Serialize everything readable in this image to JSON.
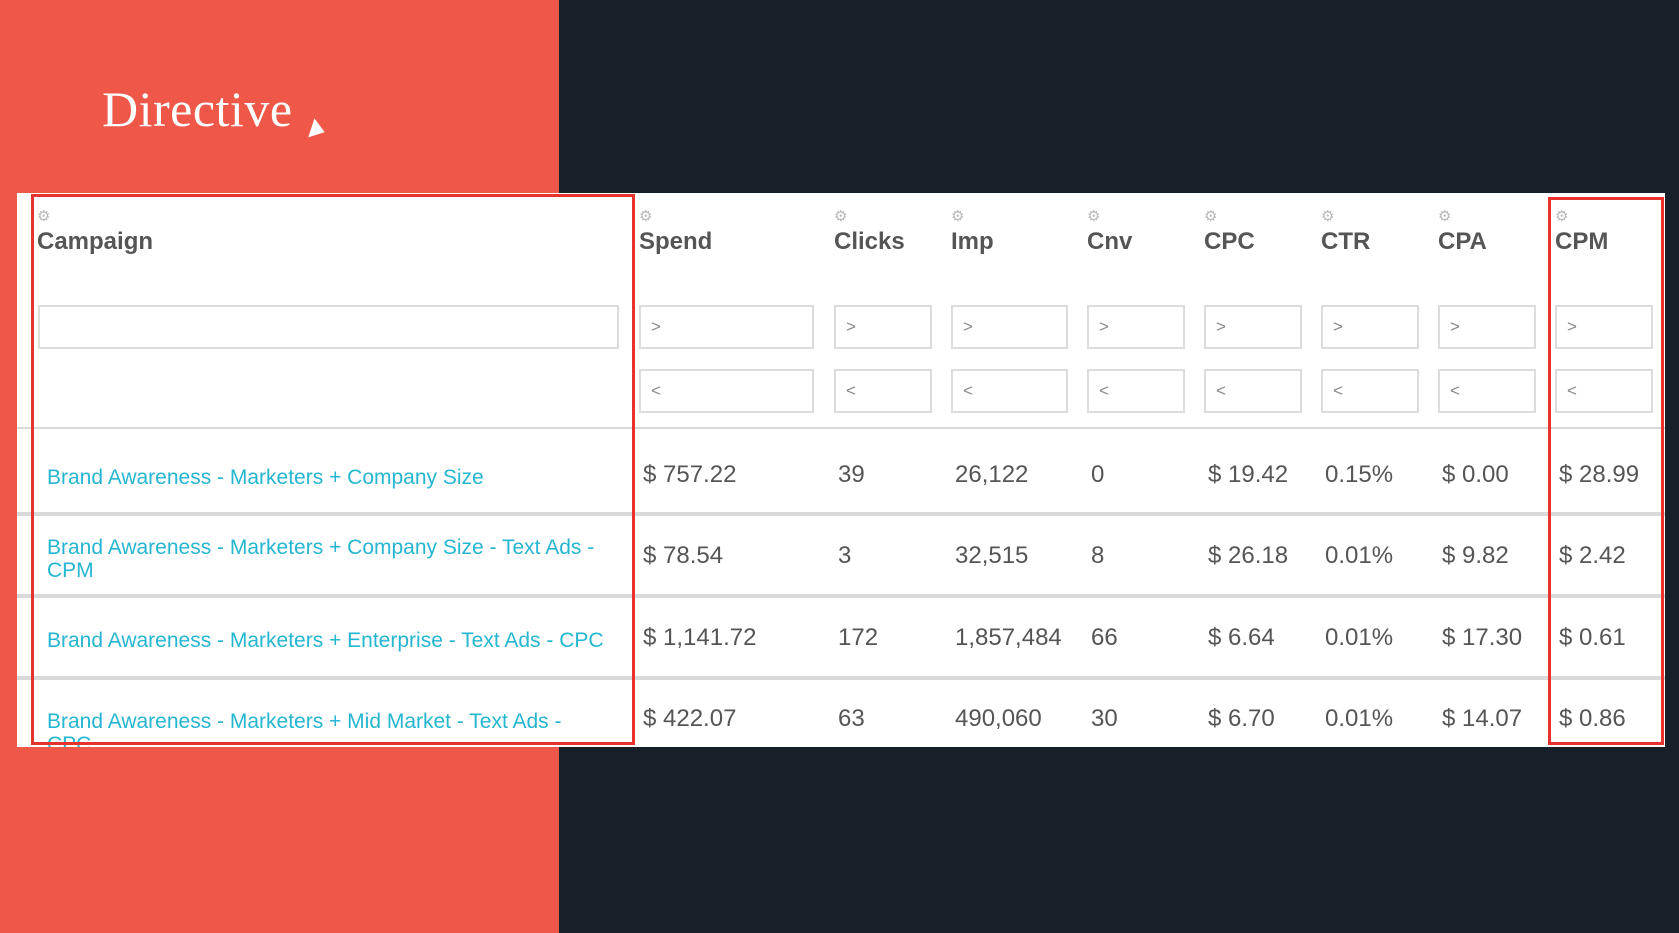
{
  "brand": {
    "name": "Directive"
  },
  "colors": {
    "accent_red": "#ef5848",
    "dark_bg": "#172029",
    "link": "#25b6d1",
    "highlight": "#e8322e"
  },
  "table": {
    "columns": [
      {
        "key": "campaign",
        "label": "Campaign"
      },
      {
        "key": "spend",
        "label": "Spend"
      },
      {
        "key": "clicks",
        "label": "Clicks"
      },
      {
        "key": "imp",
        "label": "Imp"
      },
      {
        "key": "cnv",
        "label": "Cnv"
      },
      {
        "key": "cpc",
        "label": "CPC"
      },
      {
        "key": "ctr",
        "label": "CTR"
      },
      {
        "key": "cpa",
        "label": "CPA"
      },
      {
        "key": "cpm",
        "label": "CPM"
      }
    ],
    "filter_gt": ">",
    "filter_lt": "<",
    "rows": [
      {
        "campaign": "Brand Awareness - Marketers + Company Size",
        "spend": "$ 757.22",
        "clicks": "39",
        "imp": "26,122",
        "cnv": "0",
        "cpc": "$ 19.42",
        "ctr": "0.15%",
        "cpa": "$ 0.00",
        "cpm": "$ 28.99"
      },
      {
        "campaign": "Brand Awareness - Marketers + Company Size - Text Ads - CPM",
        "spend": "$ 78.54",
        "clicks": "3",
        "imp": "32,515",
        "cnv": "8",
        "cpc": "$ 26.18",
        "ctr": "0.01%",
        "cpa": "$ 9.82",
        "cpm": "$ 2.42"
      },
      {
        "campaign": "Brand Awareness - Marketers + Enterprise - Text Ads - CPC",
        "spend": "$ 1,141.72",
        "clicks": "172",
        "imp": "1,857,484",
        "cnv": "66",
        "cpc": "$ 6.64",
        "ctr": "0.01%",
        "cpa": "$ 17.30",
        "cpm": "$ 0.61"
      },
      {
        "campaign": "Brand Awareness - Marketers + Mid Market - Text Ads - CPC",
        "spend": "$ 422.07",
        "clicks": "63",
        "imp": "490,060",
        "cnv": "30",
        "cpc": "$ 6.70",
        "ctr": "0.01%",
        "cpa": "$ 14.07",
        "cpm": "$ 0.86"
      }
    ]
  }
}
